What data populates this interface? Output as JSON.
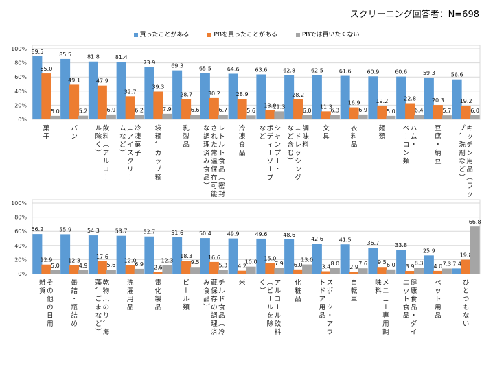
{
  "subtitle": "スクリーニング回答者：N=698",
  "legend": [
    {
      "label": "買ったことがある",
      "color": "#5B9BD5"
    },
    {
      "label": "PBを買ったことがある",
      "color": "#ED7D31"
    },
    {
      "label": "PBでは買いたくない",
      "color": "#A5A5A5"
    }
  ],
  "chart_data": [
    {
      "type": "bar",
      "title": "",
      "xlabel": "",
      "ylabel": "",
      "ylim": [
        0,
        100
      ],
      "yticks": [
        "0%",
        "20%",
        "40%",
        "60%",
        "80%",
        "100%"
      ],
      "grid": true,
      "legend_position": "top",
      "categories": [
        "菓子",
        "パン",
        "飲料（アルコール除く）",
        "冷凍菓子（アイスクリームなど）",
        "袋麺、カップ麺",
        "乳製品",
        "レトルト食品（密封された常温保存可能な調理済み食品）",
        "冷凍食品",
        "シャンプー・ボディーソープなど",
        "調味料（ドレッシングなど含む）",
        "文具",
        "衣料品",
        "麺類",
        "ハム・ベーコン類",
        "豆腐・納豆",
        "キッチン用品（ラップ、洗剤など）"
      ],
      "series": [
        {
          "name": "買ったことがある",
          "color": "#5B9BD5",
          "values": [
            89.5,
            85.5,
            81.8,
            81.4,
            73.9,
            69.3,
            65.5,
            64.6,
            63.6,
            62.8,
            62.5,
            61.6,
            60.9,
            60.6,
            59.3,
            56.6
          ]
        },
        {
          "name": "PBを買ったことがある",
          "color": "#ED7D31",
          "values": [
            65.0,
            49.1,
            47.9,
            32.7,
            39.3,
            28.7,
            30.2,
            28.9,
            13.0,
            28.2,
            11.3,
            16.9,
            19.2,
            22.8,
            20.3,
            19.2
          ]
        },
        {
          "name": "PBでは買いたくない",
          "color": "#A5A5A5",
          "values": [
            5.0,
            5.2,
            6.9,
            6.2,
            7.9,
            6.6,
            6.7,
            5.6,
            11.3,
            6.0,
            6.3,
            6.9,
            5.0,
            6.4,
            5.7,
            6.0
          ]
        }
      ]
    },
    {
      "type": "bar",
      "title": "",
      "xlabel": "",
      "ylabel": "",
      "ylim": [
        0,
        100
      ],
      "yticks": [
        "0%",
        "20%",
        "40%",
        "60%",
        "80%",
        "100%"
      ],
      "grid": true,
      "legend_position": "top",
      "categories": [
        "その他の日用雑貨",
        "缶詰・瓶詰め",
        "乾物（のり、海藻、ごまなど）",
        "洗濯用品",
        "電化製品",
        "ビール類",
        "チルド食品（冷蔵保存の調理済み食品）",
        "米",
        "アルコール飲料（ビールを除く）",
        "化粧品",
        "スポーツ・アウトドア用品",
        "自転車",
        "メニュー専用調味料",
        "健康食品・ダイエット食品",
        "ペット用品",
        "ひとつもない"
      ],
      "series": [
        {
          "name": "買ったことがある",
          "color": "#5B9BD5",
          "values": [
            56.2,
            55.9,
            54.3,
            53.7,
            52.7,
            51.6,
            50.4,
            49.9,
            49.6,
            48.6,
            42.6,
            41.5,
            36.7,
            33.8,
            25.9,
            7.4
          ]
        },
        {
          "name": "PBを買ったことがある",
          "color": "#ED7D31",
          "values": [
            12.9,
            12.3,
            17.6,
            12.0,
            2.6,
            18.3,
            16.6,
            4.2,
            15.0,
            6.0,
            3.4,
            2.9,
            9.5,
            3.9,
            4.0,
            19.8
          ]
        },
        {
          "name": "PBでは買いたくない",
          "color": "#A5A5A5",
          "values": [
            5.0,
            4.9,
            5.6,
            6.9,
            12.3,
            9.5,
            5.3,
            10.0,
            7.9,
            13.0,
            8.0,
            7.6,
            6.0,
            8.3,
            7.3,
            66.8
          ]
        }
      ]
    }
  ],
  "category_labels_vertical": [
    [
      [
        "菓子"
      ],
      [
        "パン"
      ],
      [
        "飲料（アルコー",
        "ル除く）"
      ],
      [
        "冷凍菓子",
        "（アイスクリー",
        "ムなど）"
      ],
      [
        "袋麺、カップ麺"
      ],
      [
        "乳製品"
      ],
      [
        "レトルト食品（密封",
        "された常温保存可能",
        "な調理済み食品）"
      ],
      [
        "冷凍食品"
      ],
      [
        "シャンプー・",
        "ボディーソープ",
        "など"
      ],
      [
        "調味料",
        "（ドレッシング",
        "など含む）"
      ],
      [
        "文具"
      ],
      [
        "衣料品"
      ],
      [
        "麺類"
      ],
      [
        "ハム・",
        "ベーコン類"
      ],
      [
        "豆腐・納豆"
      ],
      [
        "キッチン用品（ラッ",
        "プ、洗剤など）"
      ]
    ],
    [
      [
        "その他の日用",
        "雑貨"
      ],
      [
        "缶詰・瓶詰め"
      ],
      [
        "乾物（のり、海",
        "藻、ごまなど）"
      ],
      [
        "洗濯用品"
      ],
      [
        "電化製品"
      ],
      [
        "ビール類"
      ],
      [
        "チルド食品（冷",
        "蔵保存の調理済",
        "み食品）"
      ],
      [
        "米"
      ],
      [
        "アルコール飲料",
        "（ビールを除",
        "く）"
      ],
      [
        "化粧品"
      ],
      [
        "スポーツ・アウ",
        "トドア用品"
      ],
      [
        "自転車"
      ],
      [
        "メニュー専用調",
        "味料"
      ],
      [
        "健康食品・ダイ",
        "エット食品"
      ],
      [
        "ペット用品"
      ],
      [
        "ひとつもない"
      ]
    ]
  ]
}
